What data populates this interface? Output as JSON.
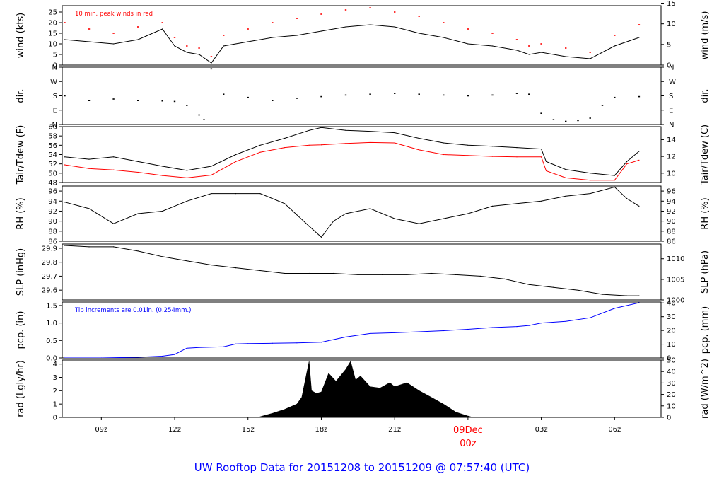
{
  "title": "UW Rooftop Data for 20151208  to  20151209 @ 07:57:40  (UTC)",
  "colors": {
    "black": "#000000",
    "red": "#ff0000",
    "blue": "#0000ff"
  },
  "chart_data": [
    {
      "type": "line",
      "key": "wind",
      "ylabel": "wind (kts)",
      "ylabel_right": "wind (m/s)",
      "ylim": [
        0,
        28
      ],
      "yticks": [
        0,
        5,
        10,
        15,
        20,
        25
      ],
      "right_ticks": [
        {
          "label": "0",
          "value": 0
        },
        {
          "label": "5",
          "value": 9.72
        },
        {
          "label": "10",
          "value": 19.44
        },
        {
          "label": "15",
          "value": 29.16
        }
      ],
      "annotation": "10 min. peak winds in red",
      "annotation_color": "#ff0000",
      "x_hours": [
        7.5,
        8.5,
        9.5,
        10.5,
        11.5,
        12.0,
        12.5,
        13.0,
        13.5,
        14.0,
        15.0,
        16.0,
        17.0,
        18.0,
        19.0,
        20.0,
        21.0,
        22.0,
        23.0,
        24.0,
        25.0,
        26.0,
        26.5,
        27.0,
        28.0,
        29.0,
        30.0,
        31.0
      ],
      "series": [
        {
          "values": [
            12,
            11,
            10,
            12,
            17,
            9,
            6,
            5,
            1,
            9,
            11,
            13,
            14,
            16,
            18,
            19,
            18,
            15,
            13,
            10,
            9,
            7,
            5,
            6,
            4,
            3,
            9,
            13
          ],
          "color": "#000000"
        },
        {
          "values": [
            20,
            17,
            15,
            18,
            20,
            13,
            9,
            8,
            4,
            14,
            17,
            20,
            22,
            24,
            26,
            27,
            25,
            23,
            20,
            17,
            15,
            12,
            9,
            10,
            8,
            6,
            14,
            19
          ],
          "color": "#ff0000",
          "style": "points"
        }
      ]
    },
    {
      "type": "scatter",
      "key": "dir",
      "ylabel": "dir.",
      "ylabel_right": "dir.",
      "ylim": [
        0,
        360
      ],
      "ycat_ticks": [
        {
          "label": "N",
          "value": 0
        },
        {
          "label": "E",
          "value": 90
        },
        {
          "label": "S",
          "value": 180
        },
        {
          "label": "W",
          "value": 270
        },
        {
          "label": "N",
          "value": 360
        }
      ],
      "x_hours": [
        7.5,
        8.5,
        9.5,
        10.5,
        11.5,
        12.0,
        12.5,
        13.0,
        13.2,
        13.5,
        14.0,
        15.0,
        16.0,
        17.0,
        18.0,
        19.0,
        20.0,
        21.0,
        22.0,
        23.0,
        24.0,
        25.0,
        26.0,
        26.5,
        27.0,
        27.5,
        28.0,
        28.5,
        29.0,
        29.5,
        30.0,
        31.0
      ],
      "series": [
        {
          "values": [
            180,
            150,
            160,
            150,
            148,
            145,
            120,
            60,
            30,
            350,
            190,
            170,
            150,
            165,
            175,
            185,
            190,
            195,
            190,
            185,
            180,
            185,
            195,
            190,
            70,
            30,
            20,
            25,
            40,
            120,
            170,
            175
          ],
          "color": "#000000"
        }
      ]
    },
    {
      "type": "line",
      "key": "temp",
      "ylabel": "Tair/Tdew (F)",
      "ylabel_right": "Tair/Tdew (C)",
      "ylim": [
        48,
        60
      ],
      "yticks": [
        48,
        50,
        52,
        54,
        56,
        58,
        60
      ],
      "right_ticks": [
        {
          "label": "10",
          "value": 50
        },
        {
          "label": "12",
          "value": 53.6
        },
        {
          "label": "14",
          "value": 57.2
        }
      ],
      "x_hours": [
        7.5,
        8.5,
        9.5,
        10.5,
        11.5,
        12.5,
        13.5,
        14.5,
        15.5,
        16.5,
        17.5,
        18.0,
        19.0,
        20.0,
        21.0,
        22.0,
        23.0,
        24.0,
        25.0,
        26.0,
        27.0,
        27.2,
        28.0,
        29.0,
        30.0,
        30.5,
        31.0
      ],
      "series": [
        {
          "name": "Tair",
          "values": [
            53.5,
            53.0,
            53.5,
            52.5,
            51.5,
            50.6,
            51.5,
            54.0,
            56.0,
            57.5,
            59.2,
            59.8,
            59.2,
            59.0,
            58.7,
            57.5,
            56.5,
            56.0,
            55.8,
            55.5,
            55.2,
            52.5,
            50.8,
            50.0,
            49.5,
            52.5,
            54.7
          ],
          "color": "#000000"
        },
        {
          "name": "Tdew",
          "values": [
            51.8,
            51.0,
            50.7,
            50.2,
            49.5,
            49.0,
            49.6,
            52.5,
            54.5,
            55.5,
            56.0,
            56.1,
            56.4,
            56.6,
            56.5,
            55.0,
            54.0,
            53.8,
            53.6,
            53.5,
            53.5,
            50.5,
            49.0,
            48.5,
            48.5,
            52.0,
            52.8
          ],
          "color": "#ff0000"
        }
      ]
    },
    {
      "type": "line",
      "key": "rh",
      "ylabel": "RH (%)",
      "ylabel_right": "RH (%)",
      "ylim": [
        86,
        97
      ],
      "yticks": [
        86,
        88,
        90,
        92,
        94,
        96
      ],
      "right_ticks": [
        {
          "label": "86",
          "value": 86
        },
        {
          "label": "88",
          "value": 88
        },
        {
          "label": "90",
          "value": 90
        },
        {
          "label": "92",
          "value": 92
        },
        {
          "label": "94",
          "value": 94
        },
        {
          "label": "96",
          "value": 96
        }
      ],
      "x_hours": [
        7.5,
        8.5,
        9.5,
        10.5,
        11.5,
        12.5,
        13.5,
        14.5,
        15.5,
        16.5,
        17.5,
        18.0,
        18.5,
        19.0,
        20.0,
        21.0,
        22.0,
        23.0,
        24.0,
        25.0,
        26.0,
        27.0,
        28.0,
        29.0,
        30.0,
        30.5,
        31.0
      ],
      "series": [
        {
          "values": [
            93.8,
            92.5,
            89.5,
            91.5,
            92.0,
            94.0,
            95.5,
            95.5,
            95.5,
            93.5,
            89.0,
            86.8,
            90.0,
            91.5,
            92.5,
            90.5,
            89.5,
            90.5,
            91.5,
            93.0,
            93.5,
            94.0,
            95.0,
            95.5,
            96.8,
            94.5,
            93.0
          ],
          "color": "#000000"
        }
      ]
    },
    {
      "type": "line",
      "key": "slp",
      "ylabel": "SLP (inHg)",
      "ylabel_right": "SLP (hPa)",
      "ylim": [
        29.53,
        29.93
      ],
      "yticks": [
        29.6,
        29.7,
        29.8,
        29.9
      ],
      "right_ticks": [
        {
          "label": "1000",
          "value": 29.53
        },
        {
          "label": "1005",
          "value": 29.677
        },
        {
          "label": "1010",
          "value": 29.825
        }
      ],
      "x_hours": [
        7.5,
        8.5,
        9.5,
        10.5,
        11.5,
        12.5,
        13.5,
        14.5,
        15.5,
        16.5,
        17.5,
        18.5,
        19.5,
        20.5,
        21.5,
        22.5,
        23.5,
        24.5,
        25.5,
        26.5,
        27.5,
        28.5,
        29.5,
        30.5,
        31.0
      ],
      "series": [
        {
          "values": [
            29.92,
            29.91,
            29.91,
            29.88,
            29.84,
            29.81,
            29.78,
            29.76,
            29.74,
            29.72,
            29.72,
            29.72,
            29.71,
            29.71,
            29.71,
            29.72,
            29.71,
            29.7,
            29.68,
            29.64,
            29.62,
            29.6,
            29.57,
            29.56,
            29.56
          ],
          "color": "#000000"
        }
      ]
    },
    {
      "type": "line",
      "key": "pcp",
      "ylabel": "pcp. (in)",
      "ylabel_right": "pcp. (mm)",
      "ylim": [
        0,
        1.6
      ],
      "yticks": [
        0.0,
        0.5,
        1.0,
        1.5
      ],
      "ytick_labels": [
        "0.0",
        "0.5",
        "1.0",
        "1.5"
      ],
      "right_ticks": [
        {
          "label": "0",
          "value": 0
        },
        {
          "label": "10",
          "value": 0.394
        },
        {
          "label": "20",
          "value": 0.787
        },
        {
          "label": "30",
          "value": 1.181
        },
        {
          "label": "40",
          "value": 1.575
        }
      ],
      "annotation": "Tip increments are 0.01in. (0.254mm.)",
      "annotation_color": "#0000ff",
      "x_hours": [
        7.5,
        9.0,
        10.5,
        11.5,
        12.0,
        12.5,
        13.0,
        14.0,
        14.5,
        15.0,
        16.0,
        17.0,
        18.0,
        19.0,
        20.0,
        21.0,
        22.0,
        23.0,
        24.0,
        25.0,
        26.0,
        26.5,
        27.0,
        28.0,
        29.0,
        30.0,
        31.0
      ],
      "series": [
        {
          "values": [
            0.0,
            0.0,
            0.02,
            0.05,
            0.1,
            0.28,
            0.3,
            0.32,
            0.4,
            0.41,
            0.42,
            0.43,
            0.45,
            0.6,
            0.7,
            0.72,
            0.75,
            0.78,
            0.82,
            0.87,
            0.9,
            0.93,
            1.0,
            1.05,
            1.15,
            1.42,
            1.58
          ],
          "color": "#0000ff"
        }
      ]
    },
    {
      "type": "area",
      "key": "rad",
      "ylabel": "rad (Lgly/hr)",
      "ylabel_right": "rad (W/m^2)",
      "ylim": [
        0,
        4.3
      ],
      "yticks": [
        0,
        1,
        2,
        3,
        4
      ],
      "right_ticks": [
        {
          "label": "0",
          "value": 0
        },
        {
          "label": "10",
          "value": 0.86
        },
        {
          "label": "20",
          "value": 1.72
        },
        {
          "label": "30",
          "value": 2.58
        },
        {
          "label": "40",
          "value": 3.44
        },
        {
          "label": "50",
          "value": 4.3
        }
      ],
      "x_hours": [
        15.4,
        15.6,
        16.0,
        16.5,
        17.0,
        17.2,
        17.4,
        17.5,
        17.6,
        17.8,
        18.0,
        18.3,
        18.6,
        19.0,
        19.2,
        19.4,
        19.6,
        20.0,
        20.4,
        20.8,
        21.0,
        21.5,
        22.0,
        22.5,
        23.0,
        23.5,
        24.0,
        24.2
      ],
      "series": [
        {
          "values": [
            0.0,
            0.1,
            0.3,
            0.6,
            1.0,
            1.5,
            3.3,
            4.2,
            2.0,
            1.8,
            1.9,
            3.3,
            2.7,
            3.6,
            4.2,
            2.8,
            3.1,
            2.3,
            2.2,
            2.6,
            2.3,
            2.6,
            2.0,
            1.5,
            1.0,
            0.4,
            0.1,
            0.0
          ],
          "color": "#000000"
        }
      ]
    }
  ],
  "x_axis": {
    "range_hours": [
      7.4,
      31.9
    ],
    "ticks": [
      {
        "hour": 9,
        "label": "09z"
      },
      {
        "hour": 12,
        "label": "12z"
      },
      {
        "hour": 15,
        "label": "15z"
      },
      {
        "hour": 18,
        "label": "18z"
      },
      {
        "hour": 21,
        "label": "21z"
      },
      {
        "hour": 24,
        "label": "09Dec",
        "label2": "00z",
        "color": "#ff0000"
      },
      {
        "hour": 27,
        "label": "03z"
      },
      {
        "hour": 30,
        "label": "06z"
      }
    ]
  }
}
